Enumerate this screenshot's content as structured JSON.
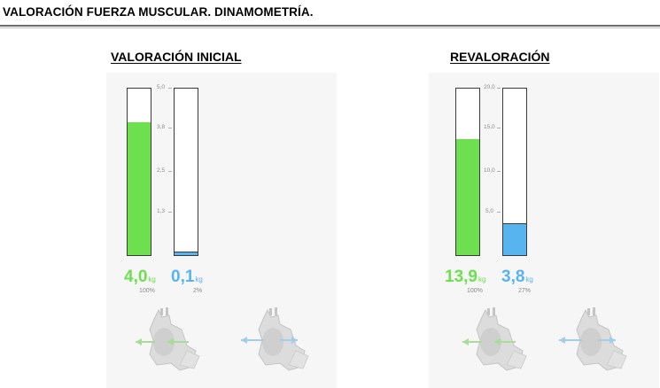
{
  "page": {
    "title": "VALORACIÓN FUERZA MUSCULAR. DINAMOMETRÍA."
  },
  "colors": {
    "green": "#6ee04f",
    "blue": "#58b4ee",
    "panel_bg": "#f6f6f6"
  },
  "sections": [
    {
      "heading": "VALORACIÓN INICIAL",
      "scale_max": 5.0,
      "ticks": [
        "5,0",
        "3,8",
        "2,5",
        "1,3"
      ],
      "bars": [
        {
          "value": 4.0,
          "value_label": "4,0",
          "unit": "kg",
          "percent": "100%",
          "color": "green"
        },
        {
          "value": 0.1,
          "value_label": "0,1",
          "unit": "kg",
          "percent": "2%",
          "color": "blue"
        }
      ],
      "icons": [
        "muscle-green-arrows-icon",
        "muscle-blue-arrows-icon"
      ]
    },
    {
      "heading": "REVALORACIÓN",
      "scale_max": 20.0,
      "ticks": [
        "20,0",
        "15,0",
        "10,0",
        "5,0"
      ],
      "bars": [
        {
          "value": 13.9,
          "value_label": "13,9",
          "unit": "kg",
          "percent": "100%",
          "color": "green"
        },
        {
          "value": 3.8,
          "value_label": "3,8",
          "unit": "kg",
          "percent": "27%",
          "color": "blue"
        }
      ],
      "icons": [
        "muscle-green-arrows-icon",
        "muscle-blue-arrows-icon"
      ]
    }
  ]
}
